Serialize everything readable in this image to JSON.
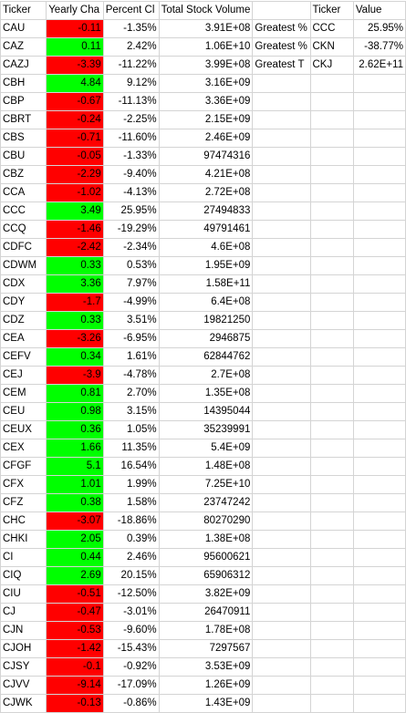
{
  "header": {
    "ticker": "Ticker",
    "yearly_change": "Yearly Cha",
    "percent_change": "Percent Cl",
    "total_volume": "Total Stock Volume",
    "summary_ticker": "Ticker",
    "summary_value": "Value"
  },
  "summary": [
    {
      "label": "Greatest %",
      "ticker": "CCC",
      "value": "25.95%"
    },
    {
      "label": "Greatest %",
      "ticker": "CKN",
      "value": "-38.77%"
    },
    {
      "label": "Greatest T",
      "ticker": "CKJ",
      "value": "2.62E+11"
    }
  ],
  "colors": {
    "positive": "#00ff00",
    "negative": "#ff0000"
  },
  "rows": [
    {
      "ticker": "CAU",
      "change": "-0.11",
      "percent": "-1.35%",
      "volume": "3.91E+08"
    },
    {
      "ticker": "CAZ",
      "change": "0.11",
      "percent": "2.42%",
      "volume": "1.06E+10"
    },
    {
      "ticker": "CAZJ",
      "change": "-3.39",
      "percent": "-11.22%",
      "volume": "3.99E+08"
    },
    {
      "ticker": "CBH",
      "change": "4.84",
      "percent": "9.12%",
      "volume": "3.16E+09"
    },
    {
      "ticker": "CBP",
      "change": "-0.67",
      "percent": "-11.13%",
      "volume": "3.36E+09"
    },
    {
      "ticker": "CBRT",
      "change": "-0.24",
      "percent": "-2.25%",
      "volume": "2.15E+09"
    },
    {
      "ticker": "CBS",
      "change": "-0.71",
      "percent": "-11.60%",
      "volume": "2.46E+09"
    },
    {
      "ticker": "CBU",
      "change": "-0.05",
      "percent": "-1.33%",
      "volume": "97474316"
    },
    {
      "ticker": "CBZ",
      "change": "-2.29",
      "percent": "-9.40%",
      "volume": "4.21E+08"
    },
    {
      "ticker": "CCA",
      "change": "-1.02",
      "percent": "-4.13%",
      "volume": "2.72E+08"
    },
    {
      "ticker": "CCC",
      "change": "3.49",
      "percent": "25.95%",
      "volume": "27494833"
    },
    {
      "ticker": "CCQ",
      "change": "-1.46",
      "percent": "-19.29%",
      "volume": "49791461"
    },
    {
      "ticker": "CDFC",
      "change": "-2.42",
      "percent": "-2.34%",
      "volume": "4.6E+08"
    },
    {
      "ticker": "CDWM",
      "change": "0.33",
      "percent": "0.53%",
      "volume": "1.95E+09"
    },
    {
      "ticker": "CDX",
      "change": "3.36",
      "percent": "7.97%",
      "volume": "1.58E+11"
    },
    {
      "ticker": "CDY",
      "change": "-1.7",
      "percent": "-4.99%",
      "volume": "6.4E+08"
    },
    {
      "ticker": "CDZ",
      "change": "0.33",
      "percent": "3.51%",
      "volume": "19821250"
    },
    {
      "ticker": "CEA",
      "change": "-3.26",
      "percent": "-6.95%",
      "volume": "2946875"
    },
    {
      "ticker": "CEFV",
      "change": "0.34",
      "percent": "1.61%",
      "volume": "62844762"
    },
    {
      "ticker": "CEJ",
      "change": "-3.9",
      "percent": "-4.78%",
      "volume": "2.7E+08"
    },
    {
      "ticker": "CEM",
      "change": "0.81",
      "percent": "2.70%",
      "volume": "1.35E+08"
    },
    {
      "ticker": "CEU",
      "change": "0.98",
      "percent": "3.15%",
      "volume": "14395044"
    },
    {
      "ticker": "CEUX",
      "change": "0.36",
      "percent": "1.05%",
      "volume": "35239991"
    },
    {
      "ticker": "CEX",
      "change": "1.66",
      "percent": "11.35%",
      "volume": "5.4E+09"
    },
    {
      "ticker": "CFGF",
      "change": "5.1",
      "percent": "16.54%",
      "volume": "1.48E+08"
    },
    {
      "ticker": "CFX",
      "change": "1.01",
      "percent": "1.99%",
      "volume": "7.25E+10"
    },
    {
      "ticker": "CFZ",
      "change": "0.38",
      "percent": "1.58%",
      "volume": "23747242"
    },
    {
      "ticker": "CHC",
      "change": "-3.07",
      "percent": "-18.86%",
      "volume": "80270290"
    },
    {
      "ticker": "CHKI",
      "change": "2.05",
      "percent": "0.39%",
      "volume": "1.38E+08"
    },
    {
      "ticker": "CI",
      "change": "0.44",
      "percent": "2.46%",
      "volume": "95600621"
    },
    {
      "ticker": "CIQ",
      "change": "2.69",
      "percent": "20.15%",
      "volume": "65906312"
    },
    {
      "ticker": "CIU",
      "change": "-0.51",
      "percent": "-12.50%",
      "volume": "3.82E+09"
    },
    {
      "ticker": "CJ",
      "change": "-0.47",
      "percent": "-3.01%",
      "volume": "26470911"
    },
    {
      "ticker": "CJN",
      "change": "-0.53",
      "percent": "-9.60%",
      "volume": "1.78E+08"
    },
    {
      "ticker": "CJOH",
      "change": "-1.42",
      "percent": "-15.43%",
      "volume": "7297567"
    },
    {
      "ticker": "CJSY",
      "change": "-0.1",
      "percent": "-0.92%",
      "volume": "3.53E+09"
    },
    {
      "ticker": "CJVV",
      "change": "-9.14",
      "percent": "-17.09%",
      "volume": "1.26E+09"
    },
    {
      "ticker": "CJWK",
      "change": "-0.13",
      "percent": "-0.86%",
      "volume": "1.43E+09"
    }
  ]
}
